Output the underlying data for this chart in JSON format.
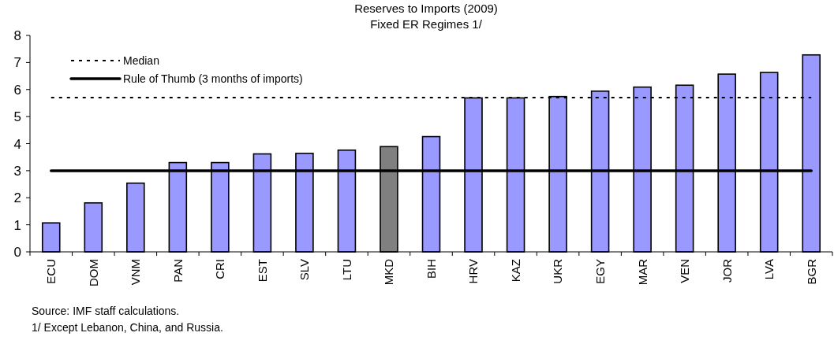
{
  "chart_data": {
    "type": "bar",
    "title": "Reserves to Imports (2009)",
    "subtitle": "Fixed ER Regimes 1/",
    "categories": [
      "ECU",
      "DOM",
      "VNM",
      "PAN",
      "CRI",
      "EST",
      "SLV",
      "LTU",
      "MKD",
      "BIH",
      "HRV",
      "KAZ",
      "UKR",
      "EGY",
      "MAR",
      "VEN",
      "JOR",
      "LVA",
      "BGR"
    ],
    "values": [
      1.07,
      1.81,
      2.54,
      3.3,
      3.3,
      3.62,
      3.64,
      3.76,
      3.89,
      4.26,
      5.69,
      5.69,
      5.74,
      5.94,
      6.09,
      6.16,
      6.57,
      6.63,
      7.28
    ],
    "colors": [
      "#9999ff",
      "#9999ff",
      "#9999ff",
      "#9999ff",
      "#9999ff",
      "#9999ff",
      "#9999ff",
      "#9999ff",
      "#808080",
      "#9999ff",
      "#9999ff",
      "#9999ff",
      "#9999ff",
      "#9999ff",
      "#9999ff",
      "#9999ff",
      "#9999ff",
      "#9999ff",
      "#9999ff"
    ],
    "ylim": [
      0,
      8
    ],
    "yticks": [
      0,
      1,
      2,
      3,
      4,
      5,
      6,
      7,
      8
    ],
    "ref_lines": [
      {
        "axis": "y",
        "value": 5.7,
        "label": "Median",
        "color": "#000000",
        "line_style": "dotted"
      },
      {
        "axis": "y",
        "value": 3,
        "label": "Rule of Thumb (3 months of imports)",
        "color": "#000000",
        "line_style": "solid"
      }
    ],
    "legend": "top left",
    "annotations": [
      "Source: IMF staff calculations.",
      "1/ Except Lebanon, China, and Russia."
    ]
  }
}
